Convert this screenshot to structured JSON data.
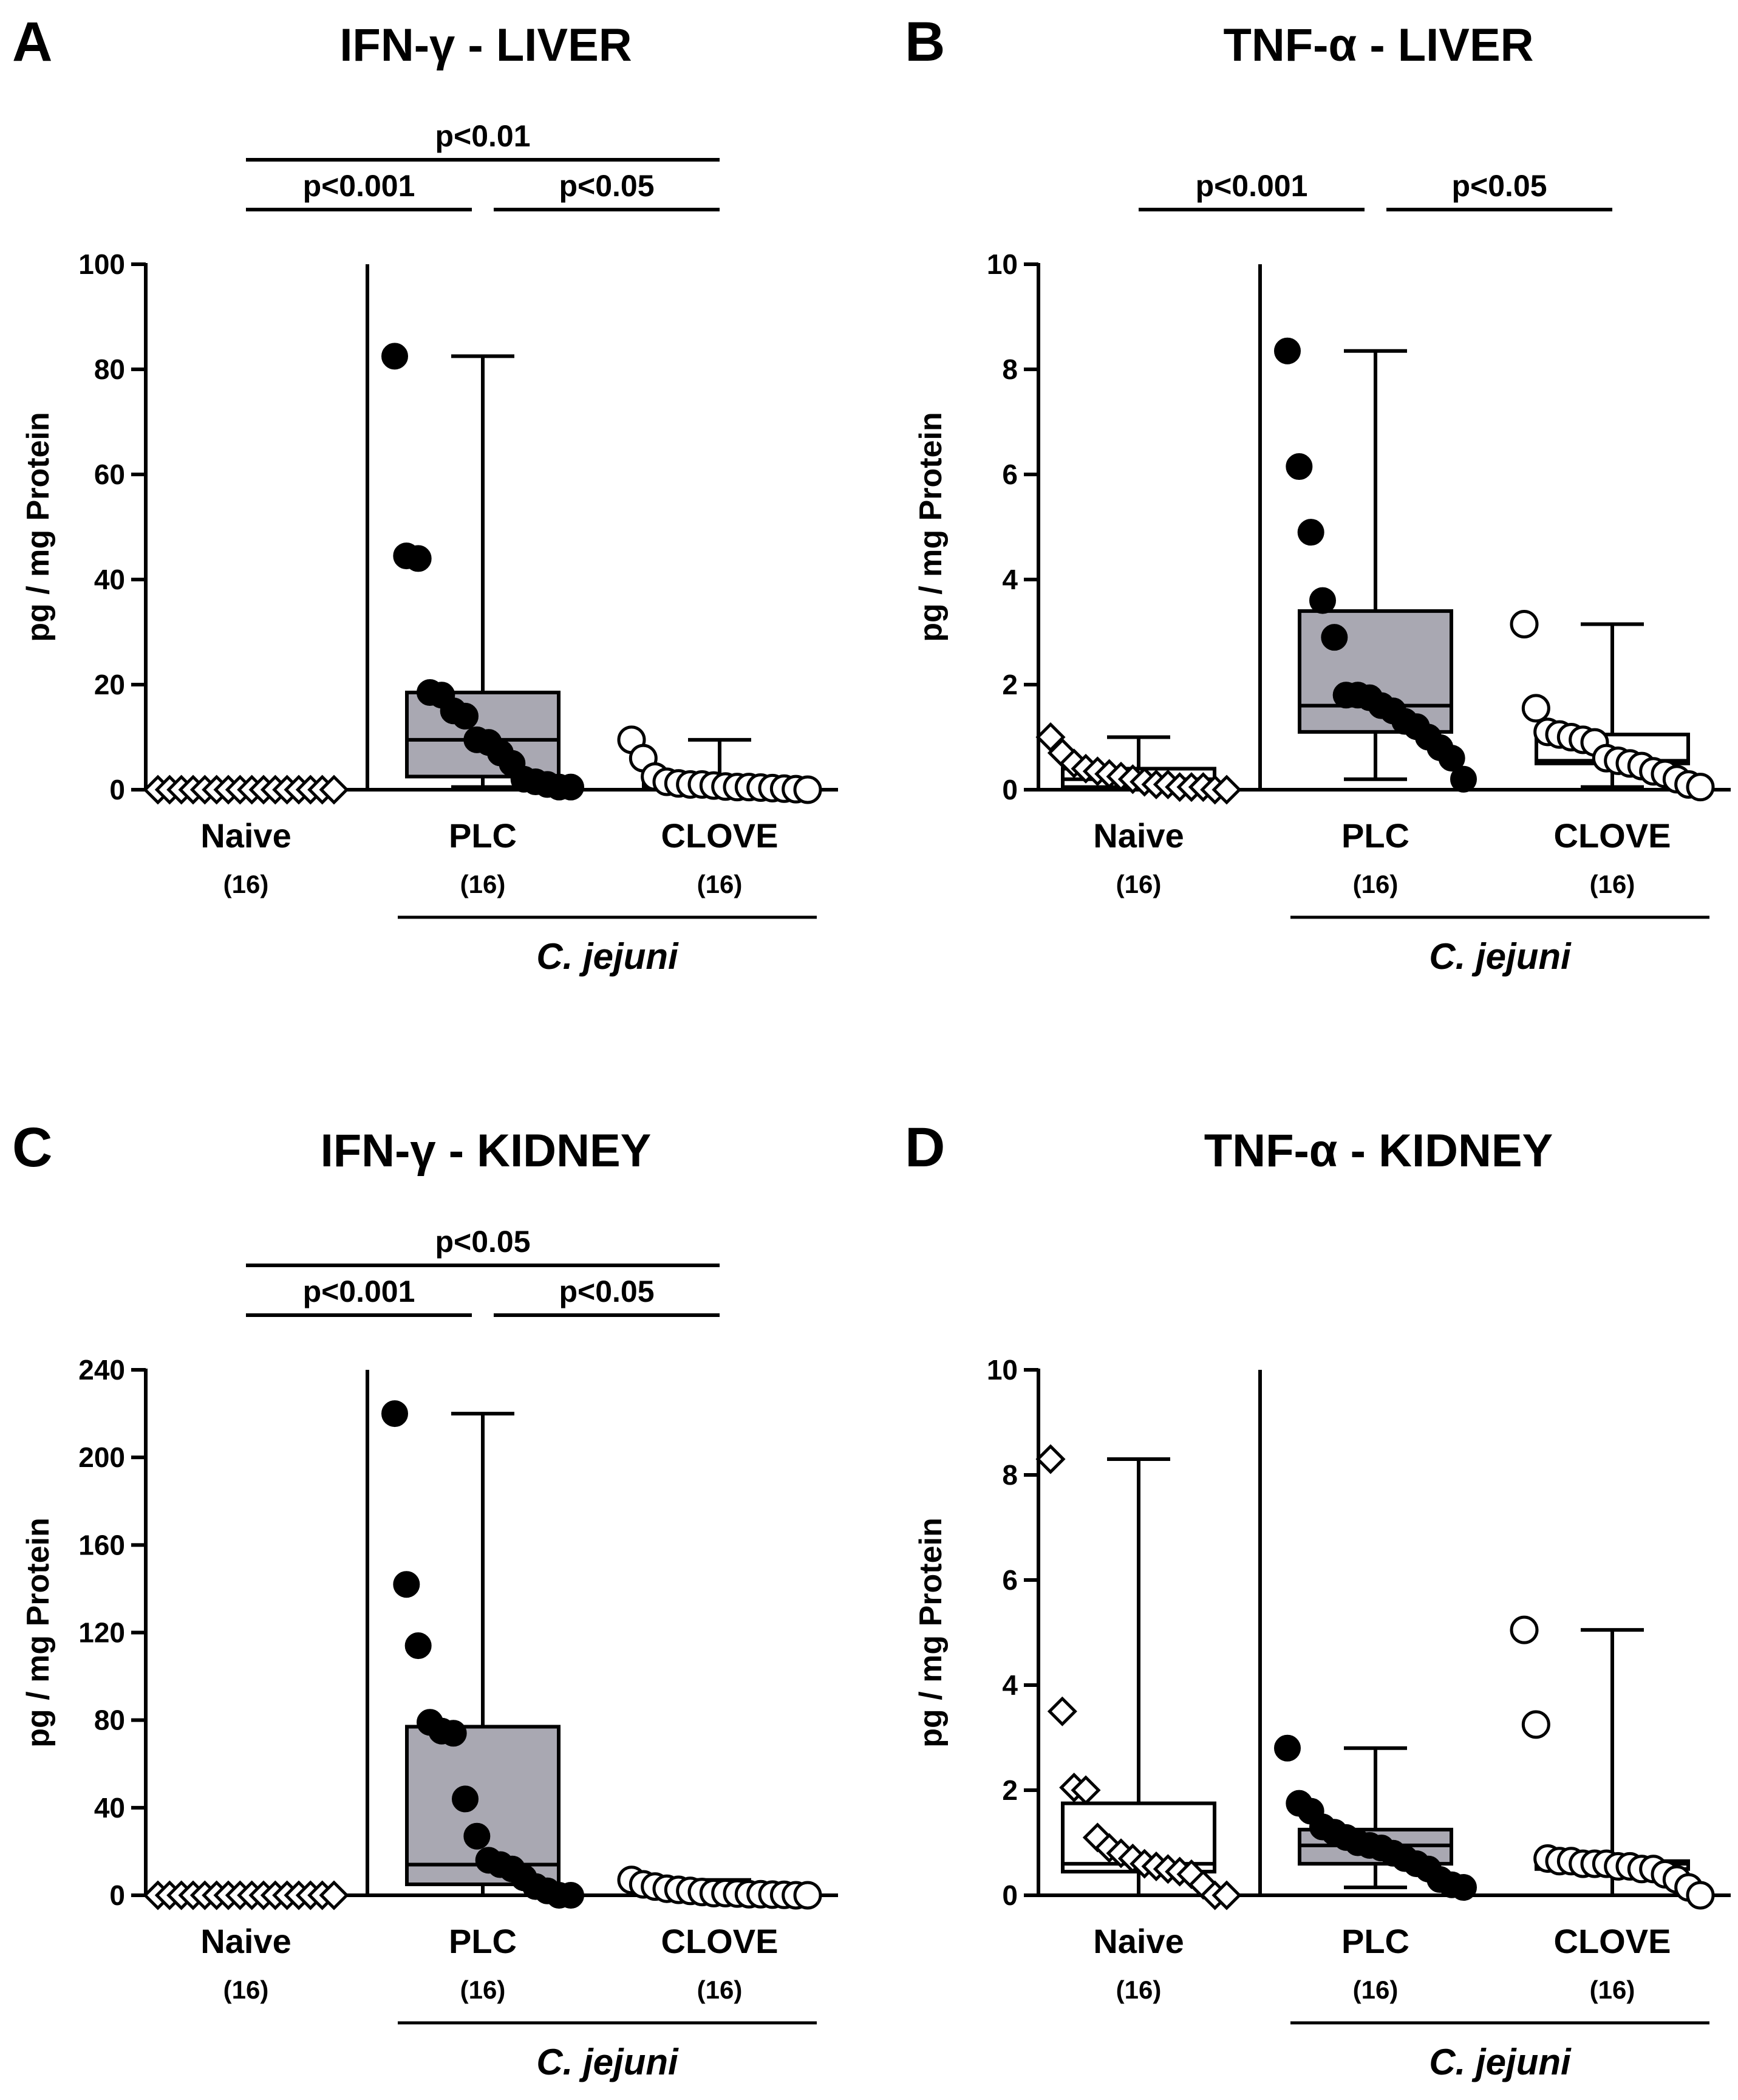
{
  "figure": {
    "group_label": "C. jejuni",
    "y_axis_label": "pg / mg Protein"
  },
  "chart_data": [
    {
      "panel": "A",
      "type": "boxplot",
      "title": "IFN-γ - LIVER",
      "ylabel": "pg / mg Protein",
      "ylim": [
        0,
        100
      ],
      "yticks": [
        0,
        20,
        40,
        60,
        80,
        100
      ],
      "categories": [
        {
          "name": "Naive",
          "n": "(16)",
          "min": 0,
          "q1": 0,
          "median": 0,
          "q3": 0,
          "max": 0,
          "marker": "diamond",
          "fill": "none",
          "points": [
            0,
            0,
            0,
            0,
            0,
            0,
            0,
            0,
            0,
            0,
            0,
            0,
            0,
            0,
            0,
            0
          ]
        },
        {
          "name": "PLC",
          "n": "(16)",
          "min": 0.5,
          "q1": 2.5,
          "median": 9.5,
          "q3": 18.5,
          "max": 82.5,
          "marker": "circle",
          "fill": "#a9a8b2",
          "points": [
            82.5,
            44.5,
            44,
            18.5,
            18,
            15,
            14,
            9.5,
            9,
            7,
            5,
            2,
            1.5,
            1,
            0.5,
            0.5
          ]
        },
        {
          "name": "CLOVE",
          "n": "(16)",
          "min": 0,
          "q1": 0.2,
          "median": 0.5,
          "q3": 1.5,
          "max": 9.5,
          "marker": "circle-open",
          "fill": "none",
          "points": [
            9.5,
            6,
            2.5,
            1.5,
            1.2,
            1,
            1,
            0.8,
            0.6,
            0.5,
            0.5,
            0.4,
            0.3,
            0.2,
            0.1,
            0
          ]
        }
      ],
      "group_label": "C. jejuni",
      "significance": [
        {
          "label": "p<0.01",
          "from": "Naive",
          "to": "CLOVE",
          "level": 2
        },
        {
          "label": "p<0.001",
          "from": "Naive",
          "to": "PLC",
          "level": 1
        },
        {
          "label": "p<0.05",
          "from": "PLC",
          "to": "CLOVE",
          "level": 1
        }
      ]
    },
    {
      "panel": "B",
      "type": "boxplot",
      "title": "TNF-α - LIVER",
      "ylabel": "pg / mg Protein",
      "ylim": [
        0,
        10
      ],
      "yticks": [
        0,
        2,
        4,
        6,
        8,
        10
      ],
      "categories": [
        {
          "name": "Naive",
          "n": "(16)",
          "min": 0,
          "q1": 0.05,
          "median": 0.2,
          "q3": 0.4,
          "max": 1.0,
          "marker": "diamond",
          "fill": "none",
          "points": [
            1.0,
            0.7,
            0.5,
            0.4,
            0.35,
            0.3,
            0.25,
            0.2,
            0.15,
            0.1,
            0.1,
            0.05,
            0.05,
            0.05,
            0,
            0
          ]
        },
        {
          "name": "PLC",
          "n": "(16)",
          "min": 0.2,
          "q1": 1.1,
          "median": 1.6,
          "q3": 3.4,
          "max": 8.35,
          "marker": "circle",
          "fill": "#a9a8b2",
          "points": [
            8.35,
            6.15,
            4.9,
            3.6,
            2.9,
            1.8,
            1.8,
            1.75,
            1.6,
            1.5,
            1.3,
            1.2,
            1.0,
            0.8,
            0.6,
            0.2
          ]
        },
        {
          "name": "CLOVE",
          "n": "(16)",
          "min": 0.05,
          "q1": 0.5,
          "median": 0.55,
          "q3": 1.05,
          "max": 3.15,
          "marker": "circle-open",
          "fill": "none",
          "points": [
            3.15,
            1.55,
            1.1,
            1.05,
            1.0,
            0.95,
            0.9,
            0.6,
            0.55,
            0.5,
            0.45,
            0.35,
            0.3,
            0.2,
            0.1,
            0.05
          ]
        }
      ],
      "group_label": "C. jejuni",
      "significance": [
        {
          "label": "p<0.001",
          "from": "Naive",
          "to": "PLC",
          "level": 1
        },
        {
          "label": "p<0.05",
          "from": "PLC",
          "to": "CLOVE",
          "level": 1
        }
      ]
    },
    {
      "panel": "C",
      "type": "boxplot",
      "title": "IFN-γ - KIDNEY",
      "ylabel": "pg / mg Protein",
      "ylim": [
        0,
        240
      ],
      "yticks": [
        0,
        40,
        80,
        120,
        160,
        200,
        240
      ],
      "categories": [
        {
          "name": "Naive",
          "n": "(16)",
          "min": 0,
          "q1": 0,
          "median": 0,
          "q3": 0,
          "max": 0,
          "marker": "diamond",
          "fill": "none",
          "points": [
            0,
            0,
            0,
            0,
            0,
            0,
            0,
            0,
            0,
            0,
            0,
            0,
            0,
            0,
            0,
            0
          ]
        },
        {
          "name": "PLC",
          "n": "(16)",
          "min": 0,
          "q1": 5,
          "median": 14,
          "q3": 77,
          "max": 220,
          "marker": "circle",
          "fill": "#a9a8b2",
          "points": [
            220,
            142,
            114,
            79,
            75,
            74,
            44,
            27,
            16,
            14,
            12,
            8,
            4,
            2,
            0,
            0
          ]
        },
        {
          "name": "CLOVE",
          "n": "(16)",
          "min": 0,
          "q1": 0.5,
          "median": 1,
          "q3": 3,
          "max": 7,
          "marker": "circle-open",
          "fill": "none",
          "points": [
            7,
            5,
            4,
            3,
            2.5,
            2,
            1.5,
            1,
            1,
            0.8,
            0.5,
            0.5,
            0.3,
            0.2,
            0,
            0
          ]
        }
      ],
      "group_label": "C. jejuni",
      "significance": [
        {
          "label": "p<0.05",
          "from": "Naive",
          "to": "CLOVE",
          "level": 2
        },
        {
          "label": "p<0.001",
          "from": "Naive",
          "to": "PLC",
          "level": 1
        },
        {
          "label": "p<0.05",
          "from": "PLC",
          "to": "CLOVE",
          "level": 1
        }
      ]
    },
    {
      "panel": "D",
      "type": "boxplot",
      "title": "TNF-α - KIDNEY",
      "ylabel": "pg / mg Protein",
      "ylim": [
        0,
        10
      ],
      "yticks": [
        0,
        2,
        4,
        6,
        8,
        10
      ],
      "categories": [
        {
          "name": "Naive",
          "n": "(16)",
          "min": 0,
          "q1": 0.45,
          "median": 0.6,
          "q3": 1.75,
          "max": 8.3,
          "marker": "diamond",
          "fill": "none",
          "points": [
            8.3,
            3.5,
            2.05,
            2.0,
            1.1,
            0.9,
            0.8,
            0.7,
            0.6,
            0.55,
            0.5,
            0.45,
            0.4,
            0.2,
            0,
            0
          ]
        },
        {
          "name": "PLC",
          "n": "(16)",
          "min": 0.15,
          "q1": 0.6,
          "median": 0.95,
          "q3": 1.25,
          "max": 2.8,
          "marker": "circle",
          "fill": "#a9a8b2",
          "points": [
            2.8,
            1.75,
            1.6,
            1.3,
            1.2,
            1.1,
            1.0,
            0.95,
            0.9,
            0.8,
            0.7,
            0.6,
            0.5,
            0.3,
            0.2,
            0.15
          ]
        },
        {
          "name": "CLOVE",
          "n": "(16)",
          "min": 0,
          "q1": 0.5,
          "median": 0.6,
          "q3": 0.65,
          "max": 5.05,
          "marker": "circle-open",
          "fill": "none",
          "points": [
            5.05,
            3.25,
            0.7,
            0.65,
            0.65,
            0.6,
            0.6,
            0.6,
            0.55,
            0.55,
            0.5,
            0.5,
            0.4,
            0.3,
            0.15,
            0
          ]
        }
      ],
      "group_label": "C. jejuni",
      "significance": []
    }
  ]
}
